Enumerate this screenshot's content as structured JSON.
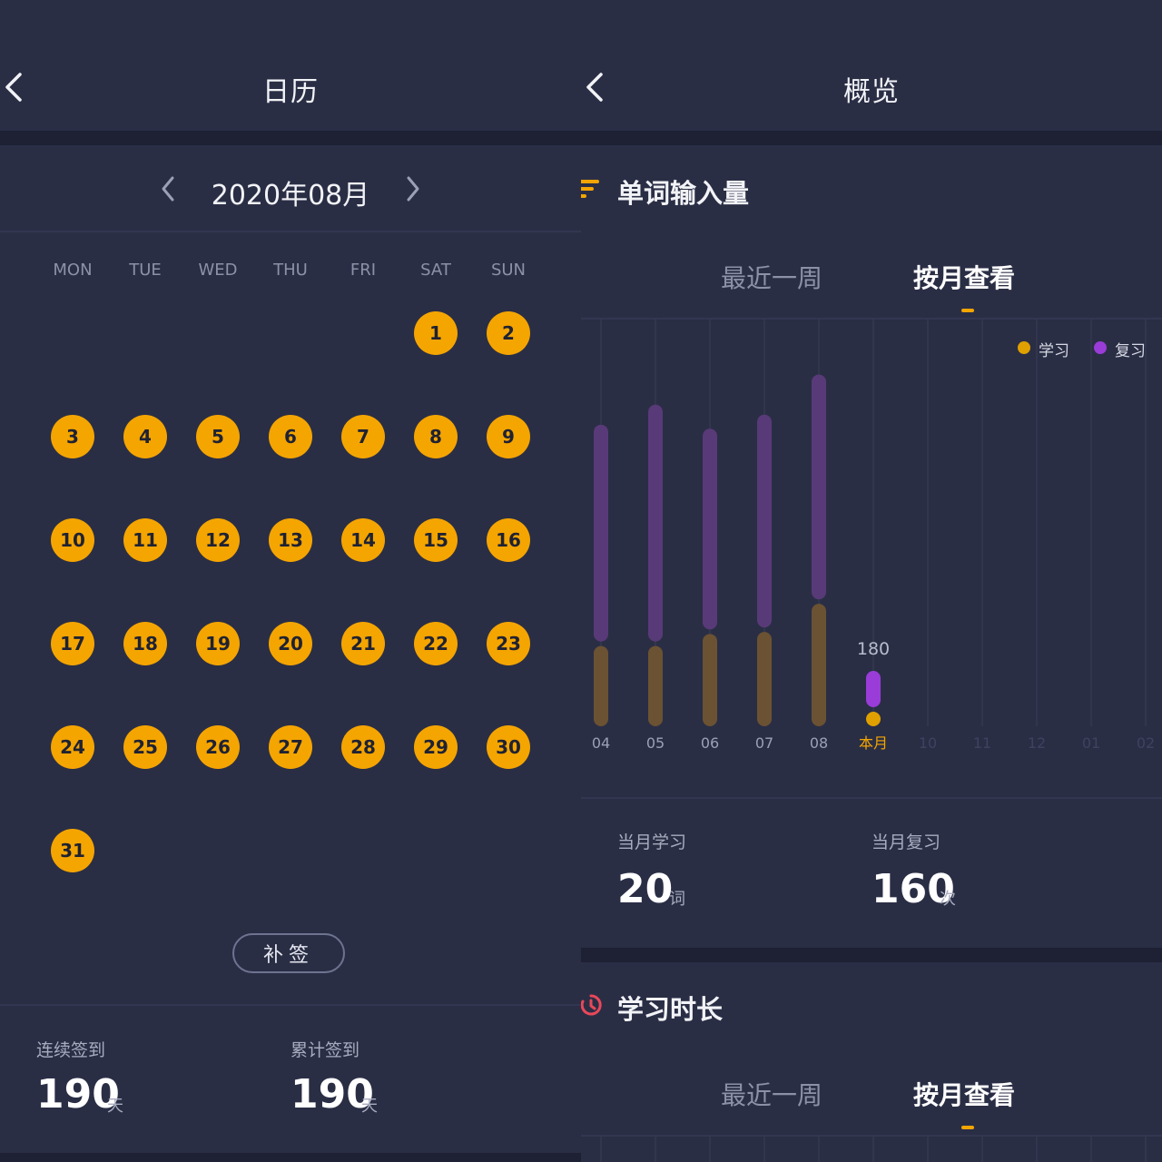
{
  "calendar": {
    "title": "日历",
    "month": "2020年08月",
    "weekdays": [
      "MON",
      "TUE",
      "WED",
      "THU",
      "FRI",
      "SAT",
      "SUN"
    ],
    "first_weekday_index": 5,
    "days": [
      "1",
      "2",
      "3",
      "4",
      "5",
      "6",
      "7",
      "8",
      "9",
      "10",
      "11",
      "12",
      "13",
      "14",
      "15",
      "16",
      "17",
      "18",
      "19",
      "20",
      "21",
      "22",
      "23",
      "24",
      "25",
      "26",
      "27",
      "28",
      "29",
      "30",
      "31"
    ],
    "makeup_label": "补签",
    "streak": {
      "label": "连续签到",
      "value": "190",
      "unit": "天"
    },
    "total": {
      "label": "累计签到",
      "value": "190",
      "unit": "天"
    },
    "colors": {
      "checked_day": "#f5a500"
    }
  },
  "overview": {
    "title": "概览",
    "word_section": {
      "title": "单词输入量",
      "tabs": [
        "最近一周",
        "按月查看"
      ],
      "active_tab": 1,
      "legend": [
        {
          "label": "学习",
          "color": "#e0a000"
        },
        {
          "label": "复习",
          "color": "#9a3cd8"
        }
      ],
      "month_study": {
        "label": "当月学习",
        "value": "20",
        "unit": "词"
      },
      "month_review": {
        "label": "当月复习",
        "value": "160",
        "unit": "次"
      }
    },
    "time_section": {
      "title": "学习时长",
      "tabs": [
        "最近一周",
        "按月查看"
      ],
      "active_tab": 1
    }
  },
  "chart_data": {
    "type": "bar",
    "stacked": true,
    "categories": [
      "04",
      "05",
      "06",
      "07",
      "08",
      "本月",
      "10",
      "11",
      "12",
      "01",
      "02"
    ],
    "highlight_index": 5,
    "series": [
      {
        "name": "学习",
        "values": [
          400,
          400,
          460,
          470,
          610,
          20,
          0,
          0,
          0,
          0,
          0
        ]
      },
      {
        "name": "复习",
        "values": [
          1080,
          1180,
          1000,
          1060,
          1120,
          160,
          0,
          0,
          0,
          0,
          0
        ]
      }
    ],
    "data_labels": [
      {
        "index": 5,
        "text": "180"
      }
    ],
    "ylim": [
      0,
      1900
    ],
    "grid": true,
    "legend": "top-right"
  }
}
